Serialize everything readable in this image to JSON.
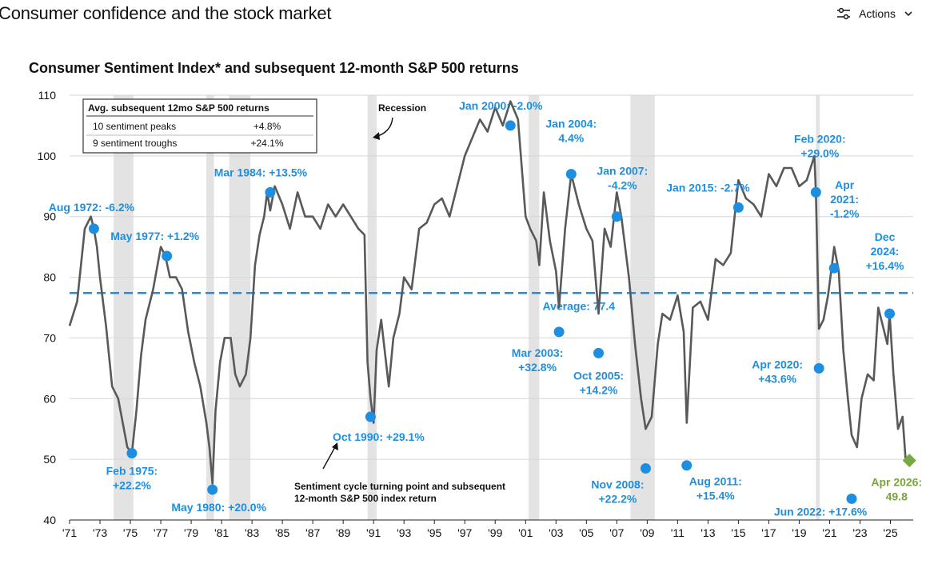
{
  "page": {
    "title": "Consumer confidence and the stock market",
    "actions_label": "Actions",
    "actions_icon": "sliders-icon",
    "actions_chevron": "chevron-down-icon"
  },
  "chart_data": {
    "type": "line",
    "title": "Consumer Sentiment Index* and subsequent 12-month S&P 500 returns",
    "xlabel": "",
    "ylabel": "",
    "ylim": [
      40,
      110
    ],
    "yticks": [
      40,
      50,
      60,
      70,
      80,
      90,
      100,
      110
    ],
    "xlim": [
      1971.0,
      2026.5
    ],
    "xtick_labels": [
      "'71",
      "'73",
      "'75",
      "'77",
      "'79",
      "'81",
      "'83",
      "'85",
      "'87",
      "'89",
      "'91",
      "'93",
      "'95",
      "'97",
      "'99",
      "'01",
      "'03",
      "'05",
      "'07",
      "'09",
      "'11",
      "'13",
      "'15",
      "'17",
      "'19",
      "'21",
      "'23",
      "'25"
    ],
    "grid": "horizontal",
    "series_color": "#58595b",
    "average": {
      "value": 77.4,
      "label": "Average: 77.4",
      "color": "#1e8fe0"
    },
    "recessions": [
      {
        "start": 1973.9,
        "end": 1975.2
      },
      {
        "start": 1980.0,
        "end": 1980.5
      },
      {
        "start": 1981.5,
        "end": 1982.9
      },
      {
        "start": 1990.6,
        "end": 1991.2
      },
      {
        "start": 2001.2,
        "end": 2001.9
      },
      {
        "start": 2007.9,
        "end": 2009.5
      },
      {
        "start": 2020.1,
        "end": 2020.35
      }
    ],
    "recession_label": "Recession",
    "series": [
      {
        "x": [
          1971.0,
          1971.5,
          1972.0,
          1972.4,
          1972.6,
          1972.8,
          1973.0,
          1973.4,
          1973.8,
          1974.2,
          1974.5,
          1974.8,
          1975.1,
          1975.4,
          1975.7,
          1976.0,
          1976.5,
          1977.0,
          1977.3,
          1977.6,
          1978.0,
          1978.4,
          1978.8,
          1979.2,
          1979.6,
          1980.0,
          1980.2,
          1980.4,
          1980.6,
          1980.9,
          1981.2,
          1981.6,
          1981.9,
          1982.2,
          1982.6,
          1982.9,
          1983.2,
          1983.5,
          1983.8,
          1984.0,
          1984.2,
          1984.5,
          1985.0,
          1985.5,
          1986.0,
          1986.5,
          1987.0,
          1987.5,
          1988.0,
          1988.5,
          1989.0,
          1989.5,
          1990.0,
          1990.4,
          1990.6,
          1990.8,
          1991.0,
          1991.2,
          1991.5,
          1992.0,
          1992.3,
          1992.7,
          1993.0,
          1993.5,
          1994.0,
          1994.5,
          1995.0,
          1995.5,
          1996.0,
          1996.5,
          1997.0,
          1997.5,
          1998.0,
          1998.5,
          1999.0,
          1999.5,
          2000.0,
          2000.5,
          2001.0,
          2001.3,
          2001.7,
          2001.9,
          2002.2,
          2002.6,
          2003.0,
          2003.2,
          2003.6,
          2004.0,
          2004.5,
          2005.0,
          2005.4,
          2005.8,
          2006.2,
          2006.6,
          2007.0,
          2007.3,
          2007.8,
          2008.2,
          2008.6,
          2008.9,
          2009.3,
          2009.7,
          2010.0,
          2010.5,
          2011.0,
          2011.4,
          2011.6,
          2012.0,
          2012.5,
          2013.0,
          2013.5,
          2014.0,
          2014.5,
          2015.0,
          2015.5,
          2016.0,
          2016.5,
          2017.0,
          2017.5,
          2018.0,
          2018.5,
          2019.0,
          2019.5,
          2020.0,
          2020.1,
          2020.3,
          2020.6,
          2020.9,
          2021.1,
          2021.3,
          2021.6,
          2021.9,
          2022.2,
          2022.45,
          2022.8,
          2023.1,
          2023.5,
          2023.9,
          2024.2,
          2024.5,
          2024.8,
          2024.95,
          2025.2,
          2025.5,
          2025.8,
          2026.0,
          2026.25
        ],
        "values": [
          72.0,
          76.0,
          88.0,
          90.0,
          88.0,
          85.0,
          80.0,
          72.0,
          62.0,
          60.0,
          56.0,
          52.0,
          51.0,
          58.0,
          67.0,
          73.0,
          78.0,
          85.0,
          83.5,
          80.0,
          80.0,
          78.0,
          71.0,
          66.0,
          62.0,
          56.0,
          52.0,
          46.0,
          58.0,
          66.0,
          70.0,
          70.0,
          64.0,
          62.0,
          64.0,
          70.0,
          82.0,
          87.0,
          90.0,
          94.0,
          91.0,
          95.0,
          92.0,
          88.0,
          94.0,
          90.0,
          90.0,
          88.0,
          92.0,
          90.0,
          92.0,
          90.0,
          88.0,
          87.0,
          66.0,
          60.0,
          56.0,
          68.0,
          73.0,
          62.0,
          70.0,
          74.0,
          80.0,
          78.0,
          88.0,
          89.0,
          92.0,
          93.0,
          90.0,
          95.0,
          100.0,
          103.0,
          106.0,
          104.0,
          108.0,
          105.0,
          109.0,
          106.0,
          90.0,
          88.0,
          86.0,
          82.0,
          94.0,
          86.0,
          81.0,
          75.0,
          88.0,
          97.0,
          92.0,
          88.0,
          86.0,
          74.0,
          88.0,
          85.0,
          94.0,
          90.0,
          80.0,
          69.0,
          60.0,
          55.0,
          57.0,
          69.0,
          74.0,
          73.0,
          77.0,
          71.0,
          56.0,
          75.0,
          76.0,
          73.0,
          83.0,
          82.0,
          84.0,
          96.0,
          93.0,
          92.0,
          90.0,
          97.0,
          95.0,
          98.0,
          98.0,
          95.0,
          96.0,
          100.0,
          94.0,
          71.5,
          73.0,
          77.0,
          81.0,
          85.0,
          81.0,
          68.0,
          60.0,
          54.0,
          52.0,
          60.0,
          64.0,
          63.0,
          75.0,
          72.0,
          69.0,
          74.0,
          64.0,
          55.0,
          57.0,
          50.0,
          50.0
        ]
      }
    ],
    "table": {
      "header_left": "Avg. subsequent 12mo S&P 500 returns",
      "rows": [
        {
          "label": "10 sentiment peaks",
          "value": "+4.8%"
        },
        {
          "label": "9 sentiment troughs",
          "value": "+24.1%"
        }
      ]
    },
    "points": [
      {
        "x": 1972.6,
        "y": 88.0,
        "kind": "peak",
        "label": [
          "Aug 1972: -6.2%"
        ],
        "anchor": "middle",
        "dx": -3,
        "dy": -22
      },
      {
        "x": 1975.1,
        "y": 51.0,
        "kind": "trough",
        "label": [
          "Feb 1975:",
          "+22.2%"
        ],
        "anchor": "middle",
        "dx": 0,
        "dy": 22
      },
      {
        "x": 1977.4,
        "y": 83.5,
        "kind": "peak",
        "label": [
          "May 1977: +1.2%"
        ],
        "anchor": "middle",
        "dx": -15,
        "dy": -20
      },
      {
        "x": 1980.4,
        "y": 45.0,
        "kind": "trough",
        "label": [
          "May 1980: +20.0%"
        ],
        "anchor": "middle",
        "dx": 8,
        "dy": 22
      },
      {
        "x": 1984.2,
        "y": 94.0,
        "kind": "peak",
        "label": [
          "Mar 1984: +13.5%"
        ],
        "anchor": "middle",
        "dx": -12,
        "dy": -20
      },
      {
        "x": 1990.8,
        "y": 57.0,
        "kind": "trough",
        "label": [
          "Oct 1990: +29.1%"
        ],
        "anchor": "middle",
        "dx": 10,
        "dy": 25
      },
      {
        "x": 2000.0,
        "y": 105.0,
        "kind": "peak",
        "label": [
          "Jan 2000: -2.0%"
        ],
        "anchor": "middle",
        "dx": -12,
        "dy": -20
      },
      {
        "x": 2003.2,
        "y": 71.0,
        "kind": "trough",
        "label": [
          "Mar 2003:",
          "+32.8%"
        ],
        "anchor": "middle",
        "dx": -27,
        "dy": 26
      },
      {
        "x": 2004.0,
        "y": 97.0,
        "kind": "peak",
        "label": [
          "Jan 2004:",
          "4.4%"
        ],
        "anchor": "middle",
        "dx": 0,
        "dy": -40
      },
      {
        "x": 2005.8,
        "y": 67.5,
        "kind": "trough",
        "label": [
          "Oct 2005:",
          "+14.2%"
        ],
        "anchor": "middle",
        "dx": 0,
        "dy": 28
      },
      {
        "x": 2007.0,
        "y": 90.0,
        "kind": "peak",
        "label": [
          "Jan 2007:",
          "-4.2%"
        ],
        "anchor": "middle",
        "dx": 7,
        "dy": -34
      },
      {
        "x": 2008.9,
        "y": 48.5,
        "kind": "trough",
        "label": [
          "Nov 2008:",
          "+22.2%"
        ],
        "anchor": "middle",
        "dx": -35,
        "dy": 20
      },
      {
        "x": 2011.6,
        "y": 49.0,
        "kind": "trough",
        "label": [
          "Aug 2011:",
          "+15.4%"
        ],
        "anchor": "middle",
        "dx": 36,
        "dy": 20
      },
      {
        "x": 2015.0,
        "y": 91.5,
        "kind": "peak",
        "label": [
          "Jan 2015: -2.7%"
        ],
        "anchor": "middle",
        "dx": -38,
        "dy": -20
      },
      {
        "x": 2020.1,
        "y": 94.0,
        "kind": "peak",
        "label": [
          "Feb 2020:",
          "+29.0%"
        ],
        "anchor": "middle",
        "dx": 5,
        "dy": -44
      },
      {
        "x": 2020.3,
        "y": 65.0,
        "kind": "trough",
        "label": [
          "Apr 2020:",
          "+43.6%"
        ],
        "anchor": "middle",
        "dx": -52,
        "dy": 0
      },
      {
        "x": 2021.3,
        "y": 81.5,
        "kind": "peak",
        "label": [
          "Apr",
          "2021:",
          "-1.2%"
        ],
        "anchor": "middle",
        "dx": 13,
        "dy": -63
      },
      {
        "x": 2022.45,
        "y": 43.5,
        "kind": "trough",
        "label": [
          "Jun 2022: +17.6%"
        ],
        "anchor": "middle",
        "dx": -39,
        "dy": 16
      },
      {
        "x": 2024.95,
        "y": 74.0,
        "kind": "peak",
        "label": [
          "Dec",
          "2024:",
          "+16.4%"
        ],
        "anchor": "middle",
        "dx": -6,
        "dy": -55
      },
      {
        "x": 2026.25,
        "y": 49.8,
        "kind": "latest",
        "label": [
          "Apr 2026:",
          "49.8"
        ],
        "anchor": "middle",
        "dx": -16,
        "dy": 27
      }
    ],
    "footnote_lines": [
      "Sentiment cycle turning point and subsequent",
      "12-month S&P 500 index return"
    ],
    "peak_color": "#1e8fe0",
    "latest_color": "#78a842"
  }
}
